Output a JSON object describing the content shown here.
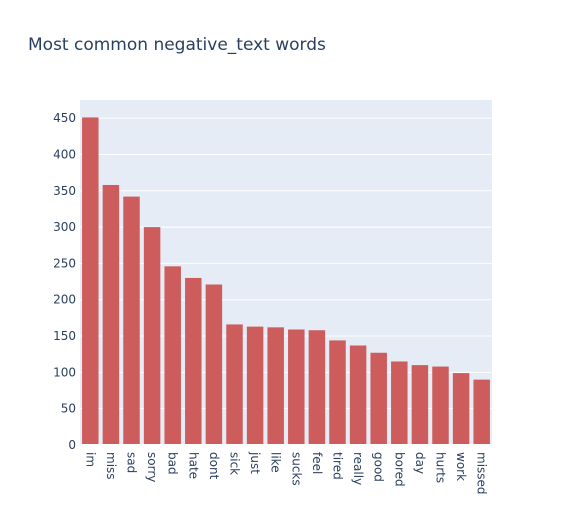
{
  "chart_data": {
    "type": "bar",
    "title": "Most common negative_text words",
    "xlabel": "",
    "ylabel": "",
    "categories": [
      "im",
      "miss",
      "sad",
      "sorry",
      "bad",
      "hate",
      "dont",
      "sick",
      "just",
      "like",
      "sucks",
      "feel",
      "tired",
      "really",
      "good",
      "bored",
      "day",
      "hurts",
      "work",
      "missed"
    ],
    "values": [
      451,
      358,
      342,
      300,
      246,
      230,
      221,
      166,
      163,
      162,
      159,
      158,
      144,
      137,
      127,
      115,
      110,
      108,
      99,
      90
    ],
    "ylim": [
      0,
      475
    ],
    "yticks": [
      0,
      50,
      100,
      150,
      200,
      250,
      300,
      350,
      400,
      450
    ],
    "grid": true,
    "bar_color": "#cd5c5c",
    "plot_background": "#e5ecf6",
    "title_color": "#2a3f5f",
    "tick_color": "#2a3f5f"
  }
}
